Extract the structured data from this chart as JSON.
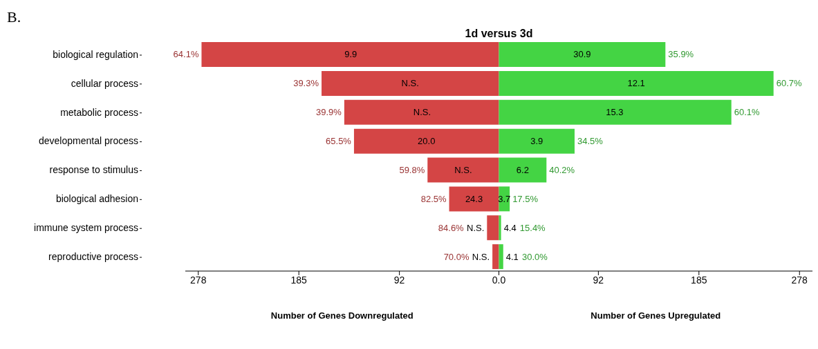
{
  "chart_data": {
    "type": "bar",
    "orientation": "horizontal",
    "stacked": true,
    "title": "1d versus 3d",
    "categories": [
      "biological regulation",
      "cellular process",
      "metabolic process",
      "developmental process",
      "response to stimulus",
      "biological adhesion",
      "immune system process",
      "reproductive process"
    ],
    "series": [
      {
        "color": "#d44545",
        "values": [
          -275,
          -164,
          -143,
          -134,
          -66,
          -46,
          -11,
          -6
        ]
      },
      {
        "color": "#44d444",
        "values": [
          154,
          254,
          215,
          70,
          44,
          10,
          2,
          4
        ]
      }
    ],
    "xlim": [
      -290,
      290
    ],
    "xticks": [
      {
        "value": -278,
        "label": "278"
      },
      {
        "value": -185,
        "label": "185"
      },
      {
        "value": -92,
        "label": "92"
      },
      {
        "value": 0,
        "label": "0.0"
      },
      92,
      185,
      278
    ],
    "annotations": [
      "B.",
      "Number of Genes Downregulated",
      "Number of Genes Upregulated",
      {
        "text": "64.1%",
        "x": -275,
        "y": "biological regulation"
      },
      {
        "text": "9.9",
        "x": -137,
        "y": "biological regulation"
      },
      {
        "text": "30.9",
        "x": 77,
        "y": "biological regulation"
      },
      {
        "text": "35.9%",
        "x": 154,
        "y": "biological regulation"
      },
      {
        "text": "39.3%",
        "x": -164,
        "y": "cellular process"
      },
      {
        "text": "N.S.",
        "x": -82,
        "y": "cellular process"
      },
      {
        "text": "12.1",
        "x": 127,
        "y": "cellular process"
      },
      {
        "text": "60.7%",
        "x": 254,
        "y": "cellular process"
      },
      {
        "text": "39.9%",
        "x": -143,
        "y": "metabolic process"
      },
      {
        "text": "N.S.",
        "x": -71,
        "y": "metabolic process"
      },
      {
        "text": "15.3",
        "x": 107,
        "y": "metabolic process"
      },
      {
        "text": "60.1%",
        "x": 215,
        "y": "metabolic process"
      },
      {
        "text": "65.5%",
        "x": -134,
        "y": "developmental process"
      },
      {
        "text": "20.0",
        "x": -67,
        "y": "developmental process"
      },
      {
        "text": "3.9",
        "x": 35,
        "y": "developmental process"
      },
      {
        "text": "34.5%",
        "x": 70,
        "y": "developmental process"
      },
      {
        "text": "59.8%",
        "x": -66,
        "y": "response to stimulus"
      },
      {
        "text": "N.S.",
        "x": -33,
        "y": "response to stimulus"
      },
      {
        "text": "6.2",
        "x": 22,
        "y": "response to stimulus"
      },
      {
        "text": "40.2%",
        "x": 44,
        "y": "response to stimulus"
      },
      {
        "text": "82.5%",
        "x": -46,
        "y": "biological adhesion"
      },
      {
        "text": "24.3",
        "x": -23,
        "y": "biological adhesion"
      },
      {
        "text": "3.7",
        "x": 5,
        "y": "biological adhesion"
      },
      {
        "text": "17.5%",
        "x": 10,
        "y": "biological adhesion"
      },
      {
        "text": "N.S.",
        "x": -11,
        "y": "immune system process"
      },
      {
        "text": "84.6%",
        "x": -11,
        "y": "immune system process"
      },
      {
        "text": "4.4",
        "x": 2,
        "y": "immune system process"
      },
      {
        "text": "15.4%",
        "x": 2,
        "y": "immune system process"
      },
      {
        "text": "N.S.",
        "x": -6,
        "y": "reproductive process"
      },
      {
        "text": "70.0%",
        "x": -6,
        "y": "reproductive process"
      },
      {
        "text": "4.1",
        "x": 4,
        "y": "reproductive process"
      },
      {
        "text": "30.0%",
        "x": 4,
        "y": "reproductive process"
      }
    ],
    "grid": false,
    "legend": false
  }
}
